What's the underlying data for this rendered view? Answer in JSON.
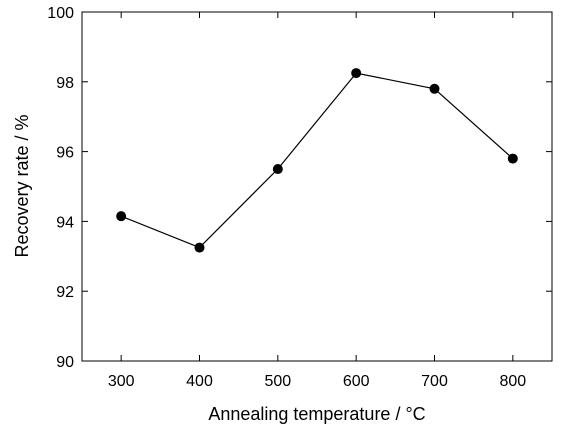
{
  "chart_data": {
    "type": "line",
    "xlabel": "Annealing temperature / °C",
    "ylabel": "Recovery rate / %",
    "x": [
      300,
      400,
      500,
      600,
      700,
      800
    ],
    "y": [
      94.15,
      93.25,
      95.5,
      98.25,
      97.8,
      95.8
    ],
    "xlim": [
      250,
      850
    ],
    "ylim": [
      90,
      100
    ],
    "xticks": [
      300,
      400,
      500,
      600,
      700,
      800
    ],
    "yticks": [
      90,
      92,
      94,
      96,
      98,
      100
    ],
    "xtick_labels": [
      "300",
      "400",
      "500",
      "600",
      "700",
      "800"
    ],
    "ytick_labels": [
      "90",
      "92",
      "94",
      "96",
      "98",
      "100"
    ],
    "grid": false,
    "legend": "none",
    "marker": "filled-circle",
    "line_color": "#000000",
    "marker_color": "#000000"
  }
}
